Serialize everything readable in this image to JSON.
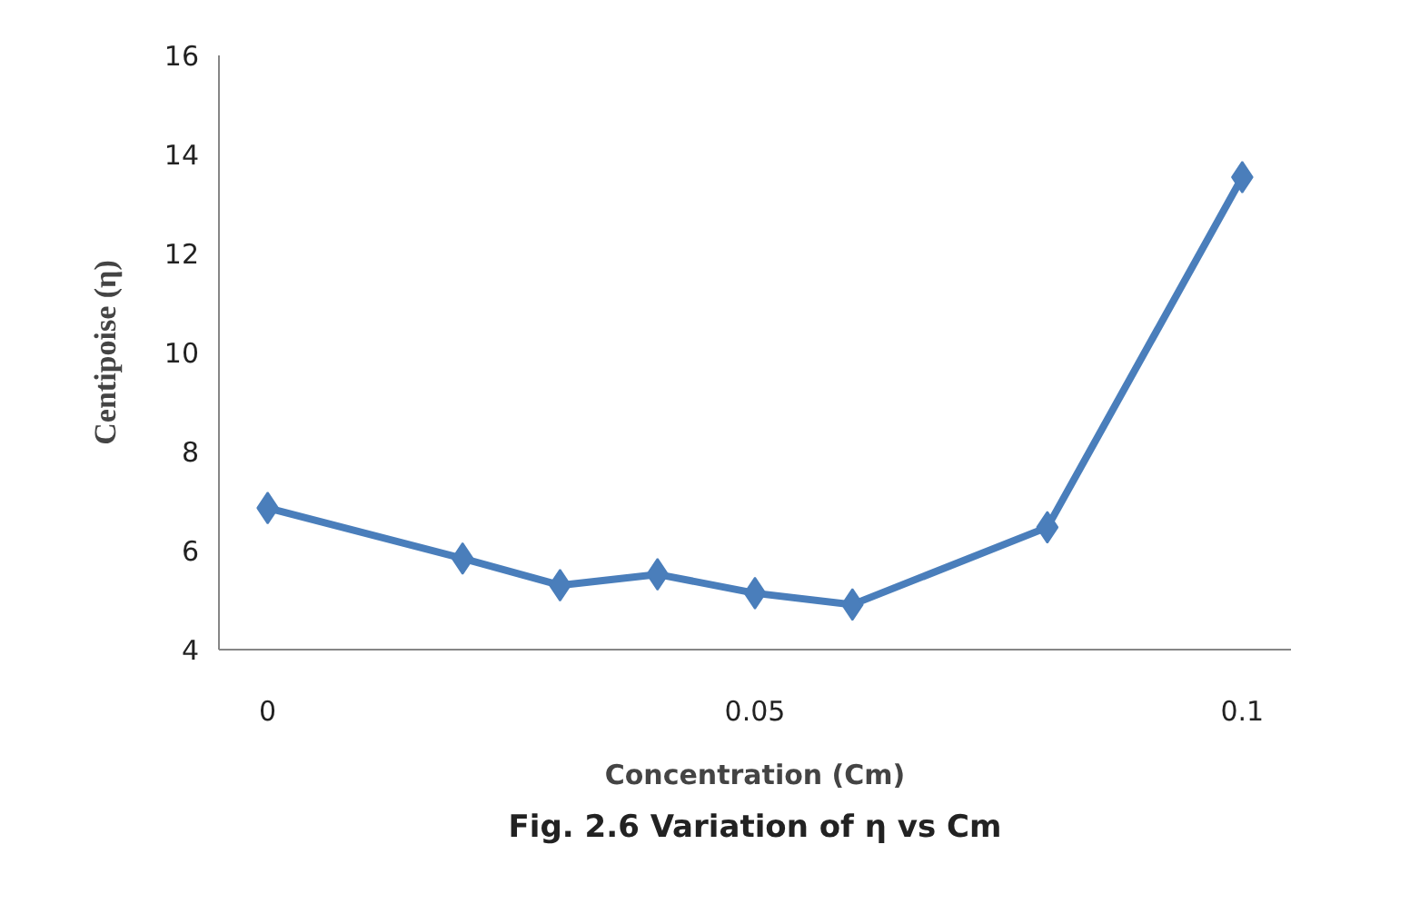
{
  "chart_data": {
    "type": "line",
    "xlabel": "Concentration (Cm)",
    "ylabel": "Centipoise (η)",
    "annotations": [
      "Fig. 2.6 Variation of η vs Cm"
    ],
    "x": [
      0,
      0.02,
      0.03,
      0.04,
      0.05,
      0.06,
      0.08,
      0.1
    ],
    "series": [
      {
        "color": "#4a7ebb",
        "values": [
          6.86,
          5.84,
          5.3,
          5.52,
          5.14,
          4.91,
          6.47,
          13.54
        ]
      }
    ],
    "xlim": [
      -0.005,
      0.105
    ],
    "ylim": [
      4,
      16
    ],
    "xticks": [
      0,
      0.05,
      0.1
    ],
    "yticks": [
      4,
      6,
      8,
      10,
      12,
      14,
      16
    ],
    "grid": false,
    "marker": "diamond",
    "line_style": "solid"
  }
}
